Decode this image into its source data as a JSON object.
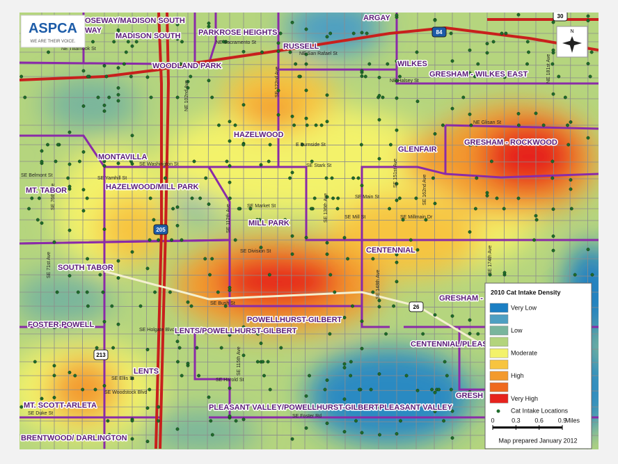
{
  "logo": {
    "name": "ASPCA",
    "tagline": "WE ARE THEIR VOICE."
  },
  "compass": "N",
  "highways": [
    "84",
    "205",
    "30",
    "26",
    "213"
  ],
  "neighborhoods": [
    "OSEWAY/MADISON SOUTH",
    "WAY",
    "MADISON SOUTH",
    "PARKROSE HEIGHTS",
    "ARGAY",
    "RUSSELL",
    "WILKES",
    "WOODLAND PARK",
    "GRESHAM - WILKES EAST",
    "HAZELWOOD",
    "GLENFAIR",
    "GRESHAM - ROCKWOOD",
    "MONTAVILLA",
    "HAZELWOOD/MILL PARK",
    "MT. TABOR",
    "MILL PARK",
    "CENTENNIAL",
    "SOUTH TABOR",
    "GRESHAM -",
    "POWELLHURST-GILBERT",
    "FOSTER-POWELL",
    "LENTS/POWELLHURST-GILBERT",
    "CENTENNIAL/PLEAS",
    "LENTS",
    "MT. SCOTT-ARLETA",
    "GRESH",
    "PLEASANT VALLEY/POWELLHURST-GILBERT",
    "PLEASANT VALLEY",
    "BRENTWOOD/ DARLINGTON"
  ],
  "streets": [
    "NE Tillamook St",
    "NE Sacramento St",
    "NE San Rafael St",
    "NE Halsey St",
    "NE Glisan St",
    "E Burnside St",
    "SE Washington St",
    "SE Yamhill St",
    "SE Stark St",
    "SE Belmont St",
    "SE Main St",
    "SE Market St",
    "SE Mill St",
    "SE Millmain Dr",
    "SE Division St",
    "SE Bush St",
    "SE Holgate Blvd",
    "SE Harold St",
    "SE Foster Rd",
    "SE Ellis St",
    "SE Woodstock Blvd",
    "SE Duke St",
    "SE 76th Ave",
    "SE 71st Ave",
    "SE 112th Ave",
    "SE 122nd Ave",
    "SE 136th Ave",
    "SE 148th Ave",
    "SE 162nd Ave",
    "SE 174th Ave",
    "NE 181st Ave",
    "SE 151st Ave",
    "SE 115th Ave",
    "NE 102nd Ave"
  ],
  "legend": {
    "title": "2010 Cat Intake Density",
    "levels": [
      {
        "label": "Very Low",
        "color": "#1b7fc3"
      },
      {
        "color": "#4e9fc2"
      },
      {
        "label": "Low",
        "color": "#79b59c"
      },
      {
        "color": "#b3d47c"
      },
      {
        "label": "Moderate",
        "color": "#f3f26a"
      },
      {
        "color": "#f7c43f"
      },
      {
        "label": "High",
        "color": "#f39a2d"
      },
      {
        "color": "#ef6a1f"
      },
      {
        "label": "Very High",
        "color": "#e6231d"
      }
    ],
    "points_label": "Cat Intake Locations",
    "point_color": "#1f6b2b",
    "scale": [
      0,
      0.3,
      0.6,
      0.9
    ],
    "scale_unit": "Miles",
    "note": "Map prepared January 2012"
  }
}
